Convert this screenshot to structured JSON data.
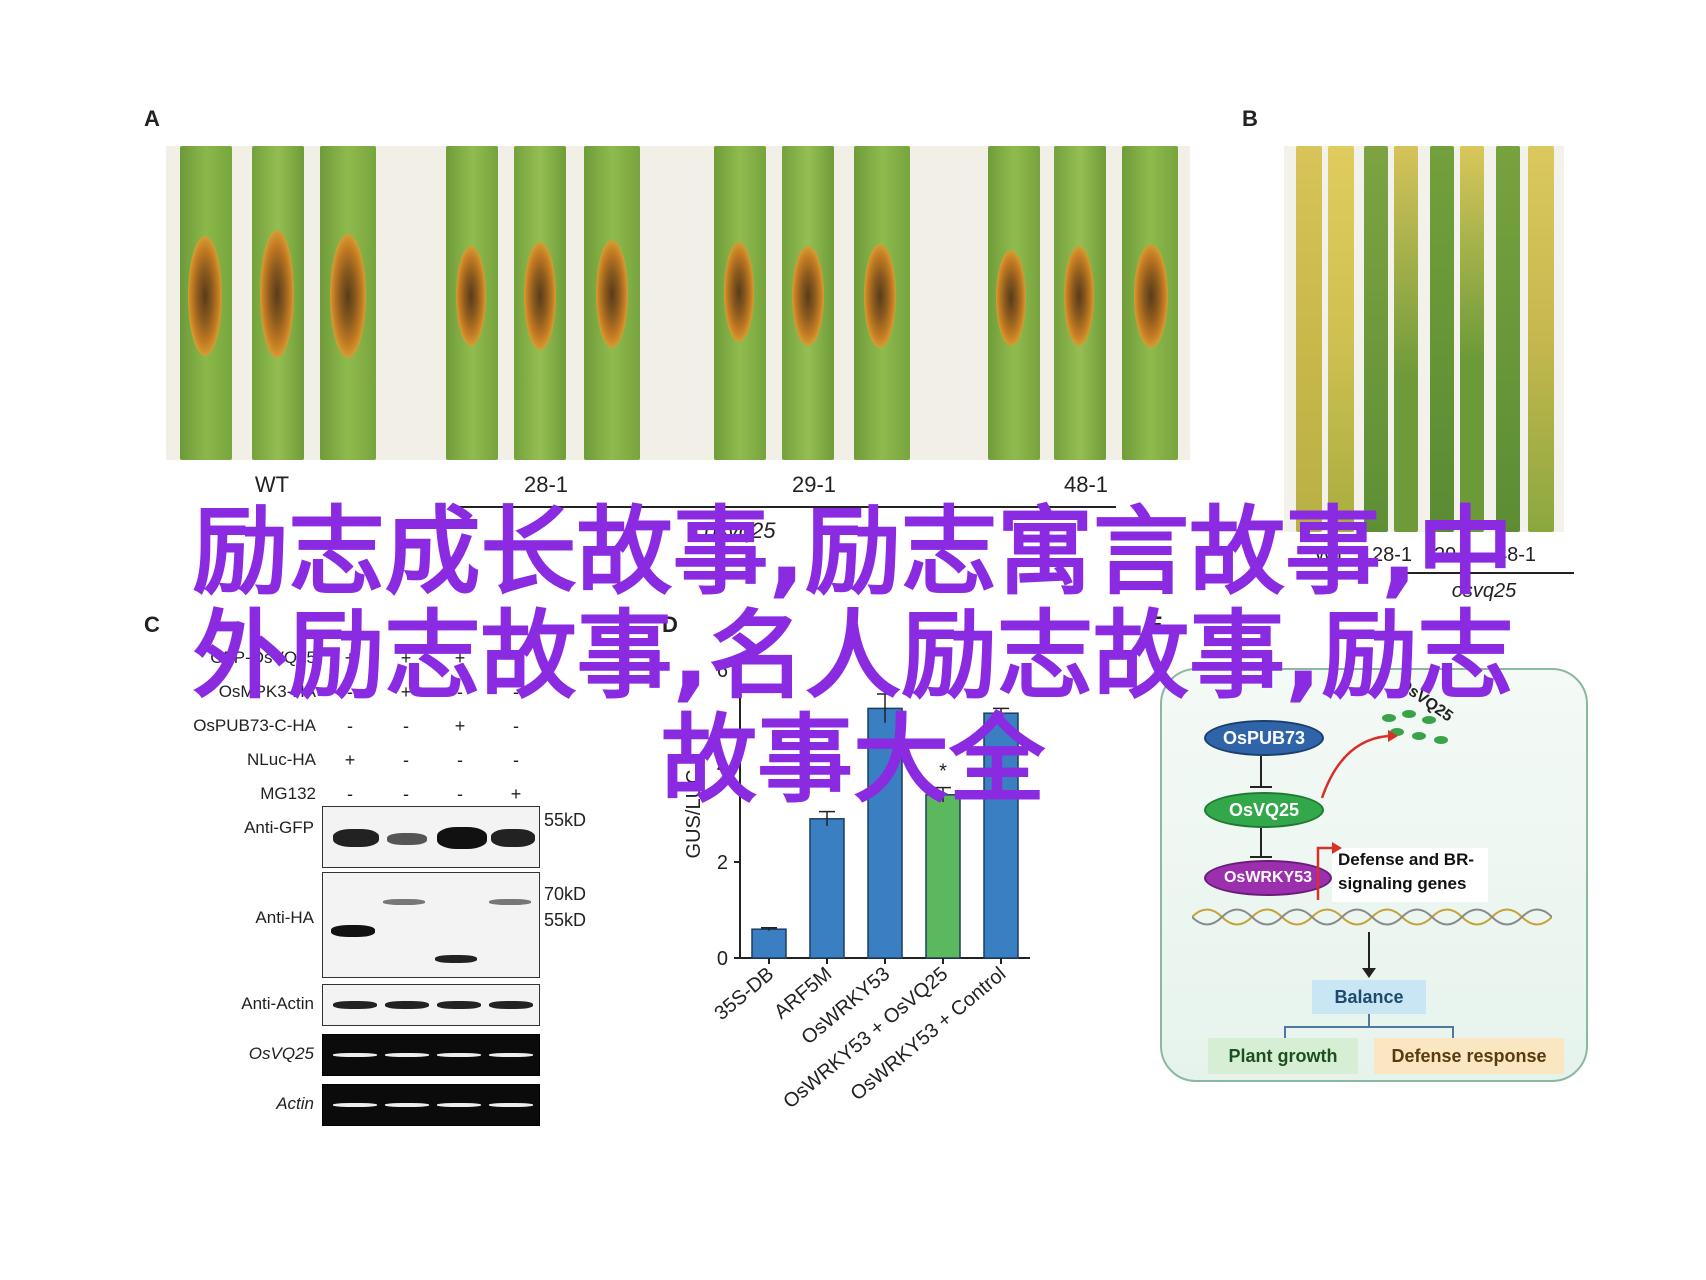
{
  "panels": {
    "a": "A",
    "b": "B",
    "c": "C",
    "d": "D",
    "e": "E"
  },
  "panel_a": {
    "genotypes": [
      "WT",
      "28-1",
      "29-1",
      "48-1"
    ],
    "subtitle": "osvq25"
  },
  "panel_b": {
    "genotypes": [
      "WT",
      "28-1",
      "29-1",
      "48-1"
    ],
    "subtitle": "osvq25"
  },
  "western_blot": {
    "constructs": [
      {
        "label": "GFP-OsVQ25",
        "signs": [
          "+",
          "+",
          "+",
          "+"
        ]
      },
      {
        "label": "OsMPK3-HA",
        "signs": [
          "-",
          "+",
          "-",
          "-"
        ]
      },
      {
        "label": "OsPUB73-C-HA",
        "signs": [
          "-",
          "-",
          "+",
          "-"
        ]
      },
      {
        "label": "NLuc-HA",
        "signs": [
          "+",
          "-",
          "-",
          "-"
        ]
      },
      {
        "label": "MG132",
        "signs": [
          "-",
          "-",
          "-",
          "+"
        ]
      }
    ],
    "blots": [
      {
        "label": "Anti-GFP",
        "markers": [
          "55kD"
        ]
      },
      {
        "label": "Anti-HA",
        "markers": [
          "70kD",
          "55kD"
        ]
      },
      {
        "label": "Anti-Actin",
        "markers": []
      },
      {
        "label": "OsVQ25",
        "markers": []
      },
      {
        "label": "Actin",
        "markers": []
      }
    ]
  },
  "chart_data": {
    "type": "bar",
    "title": "",
    "xlabel": "",
    "ylabel": "GUS/LUC",
    "ylim": [
      0,
      6
    ],
    "yticks": [
      0,
      2,
      4,
      6
    ],
    "categories": [
      "35S-DB",
      "ARF5M",
      "OsWRKY53",
      "OsWRKY53 + OsVQ25",
      "OsWRKY53 + Control"
    ],
    "values": [
      0.6,
      2.9,
      5.2,
      3.4,
      5.1
    ],
    "errors": [
      0.03,
      0.15,
      0.3,
      0.15,
      0.1
    ],
    "significance": [
      "",
      "",
      "",
      "*",
      ""
    ],
    "colors": [
      "#3a7fc1",
      "#3a7fc1",
      "#3a7fc1",
      "#5cb85c",
      "#3a7fc1"
    ]
  },
  "diagram": {
    "ospub73": "OsPUB73",
    "osvq25_label": "OsVQ25",
    "osvq25": "OsVQ25",
    "oswrky53": "OsWRKY53",
    "genes_line1": "Defense and BR-",
    "genes_line2": "signaling genes",
    "balance": "Balance",
    "plant_growth": "Plant growth",
    "defense_response": "Defense response"
  },
  "overlay": {
    "line1": "励志成长故事,励志寓言故事,中",
    "line2": "外励志故事,名人励志故事,励志",
    "line3": "故事大全"
  }
}
